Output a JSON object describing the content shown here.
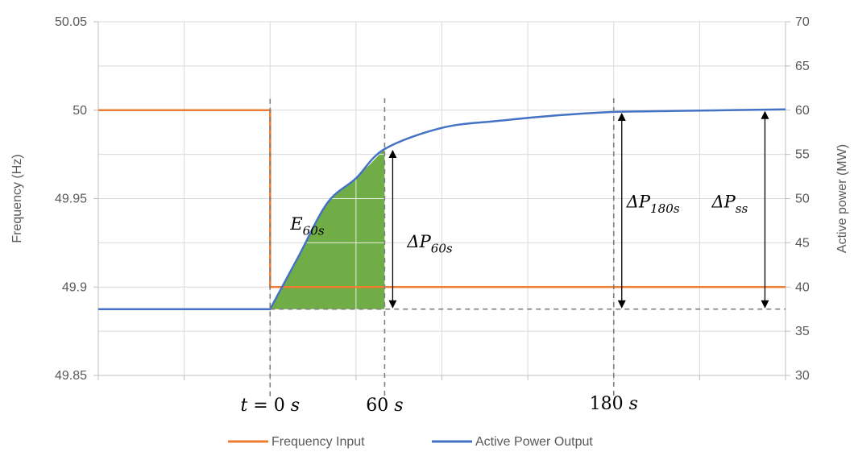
{
  "chart_data": {
    "type": "line",
    "grid": true,
    "legend_position": "bottom",
    "y_left": {
      "label": "Frequency (Hz)",
      "range": [
        49.85,
        50.05
      ],
      "ticks": [
        "49.85",
        "49.9",
        "49.95",
        "50",
        "50.05"
      ]
    },
    "y_right": {
      "label": "Active power (MW)",
      "range": [
        30,
        70
      ],
      "ticks": [
        "30",
        "35",
        "40",
        "45",
        "50",
        "55",
        "60",
        "65",
        "70"
      ]
    },
    "x_tick_labels": [
      {
        "t": 0,
        "base": "t = 0 ",
        "unit": "s"
      },
      {
        "t": 60,
        "base": "60 ",
        "unit": "s"
      },
      {
        "t": 180,
        "base": "180 ",
        "unit": "s"
      }
    ],
    "series": [
      {
        "name": "Frequency Input",
        "color": "#ED7D31",
        "axis": "left",
        "x": [
          -90,
          0,
          0,
          270
        ],
        "y": [
          50.0,
          50.0,
          49.9,
          49.9
        ]
      },
      {
        "name": "Active Power Output",
        "color": "#4472C4",
        "axis": "right",
        "x": [
          -90,
          0,
          15,
          30,
          45,
          60,
          90,
          120,
          150,
          180,
          210,
          240,
          270
        ],
        "y": [
          37.5,
          37.5,
          43.5,
          49.5,
          52.3,
          55.6,
          58.0,
          58.8,
          59.4,
          59.8,
          59.9,
          60.0,
          60.1
        ]
      }
    ],
    "annotations": {
      "energy_region": {
        "label_base": "E",
        "label_sub": "60s",
        "color": "#70AD47",
        "from_t": 0,
        "to_t": 60
      },
      "arrows": [
        {
          "label_base": "ΔP",
          "label_sub": "60s",
          "t": 60,
          "from_mw": 37.5,
          "to_mw": 55.6
        },
        {
          "label_base": "ΔP",
          "label_sub": "180s",
          "t": 180,
          "from_mw": 37.5,
          "to_mw": 59.8
        },
        {
          "label_base": "ΔP",
          "label_sub": "ss",
          "t": 255,
          "from_mw": 37.5,
          "to_mw": 60.0
        }
      ],
      "baseline_mw": 37.5
    }
  }
}
